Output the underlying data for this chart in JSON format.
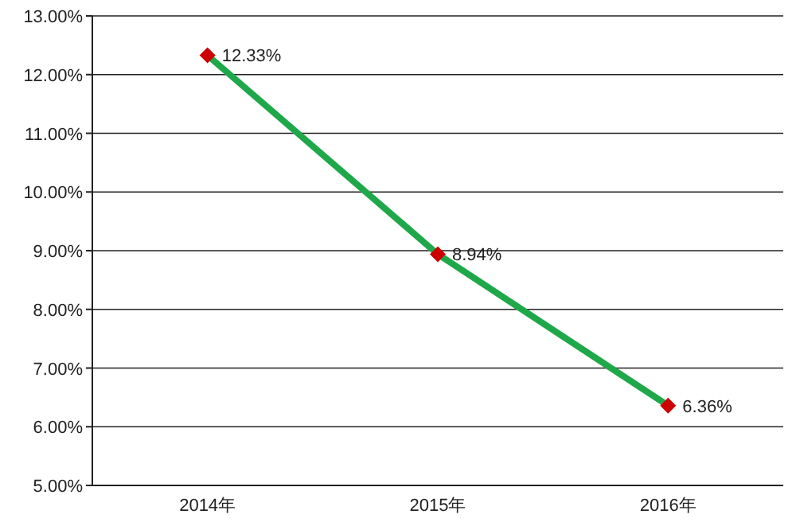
{
  "chart_data": {
    "type": "line",
    "categories": [
      "2014年",
      "2015年",
      "2016年"
    ],
    "series": [
      {
        "color": "#1fa84a",
        "colors": [
          "#cc0000",
          "#cc0000",
          "#cc0000"
        ],
        "values": [
          12.33,
          8.94,
          6.36
        ],
        "value_labels": [
          "12.33%",
          "8.94%",
          "6.36%"
        ]
      }
    ],
    "ylim": [
      5,
      13
    ],
    "yticks": [
      {
        "value": 5,
        "label": "5.00%"
      },
      {
        "value": 6,
        "label": "6.00%"
      },
      {
        "value": 7,
        "label": "7.00%"
      },
      {
        "value": 8,
        "label": "8.00%"
      },
      {
        "value": 9,
        "label": "9.00%"
      },
      {
        "value": 10,
        "label": "10.00%"
      },
      {
        "value": 11,
        "label": "11.00%"
      },
      {
        "value": 12,
        "label": "12.00%"
      },
      {
        "value": 13,
        "label": "13.00%"
      }
    ],
    "grid": "y",
    "marker": "diamond",
    "line_style": "solid"
  }
}
